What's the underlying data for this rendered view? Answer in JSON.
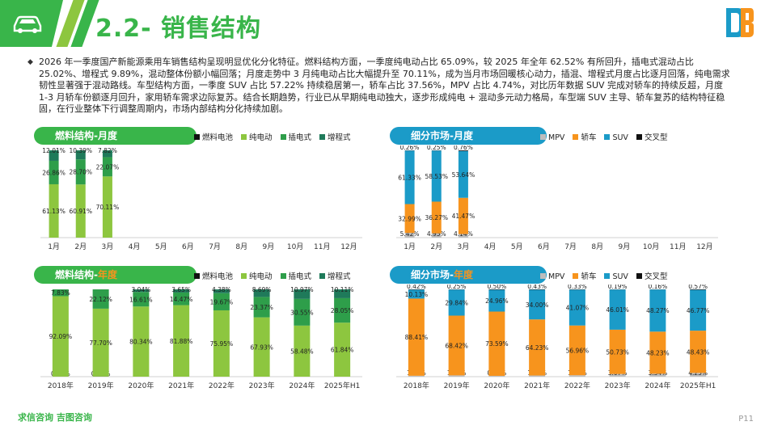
{
  "header": {
    "title": "2.2- 销售结构"
  },
  "summary": {
    "text": "2026 年一季度国产新能源乘用车销售结构呈现明显优化分化特征。燃料结构方面，一季度纯电动占比 65.09%，较 2025 年全年 62.52% 有所回升，插电式混动占比 25.02%、增程式 9.89%，混动整体份额小幅回落；月度走势中 3 月纯电动占比大幅提升至 70.11%，成为当月市场回暖核心动力，插混、增程式月度占比逐月回落，纯电需求韧性显著强于混动路线。车型结构方面，一季度 SUV 占比 57.22% 持续稳居第一，轿车占比 37.56%，MPV 占比 4.74%，对比历年数据 SUV 完成对轿车的持续反超，月度 1-3 月轿车份额逐月回升，家用轿车需求边际复苏。结合长期趋势，行业已从早期纯电动独大，逐步形成纯电 + 混动多元动力格局，车型端 SUV 主导、轿车复苏的结构特征稳固，在行业整体下行调整周期内，市场内部结构分化持续加剧。"
  },
  "colors": {
    "fuel": [
      "#111111",
      "#8dc63f",
      "#2e9e4a",
      "#1f7a5a"
    ],
    "segment": [
      "#bdbdbd",
      "#f7941d",
      "#1b9bc8",
      "#111111"
    ],
    "green_tag": "#39b54a",
    "blue_tag": "#1b9bc8"
  },
  "footer": {
    "brand": "求信咨询  吉图咨询",
    "page": "P11"
  },
  "chart_data": [
    {
      "type": "bar",
      "stacked": true,
      "title": "燃料结构-月度",
      "title_parts": [
        "燃料结构-月度"
      ],
      "categories": [
        "1月",
        "2月",
        "3月",
        "4月",
        "5月",
        "6月",
        "7月",
        "8月",
        "9月",
        "10月",
        "11月",
        "12月"
      ],
      "series": [
        {
          "name": "燃料电池",
          "values": [
            0,
            0,
            0,
            null,
            null,
            null,
            null,
            null,
            null,
            null,
            null,
            null
          ],
          "labels": [
            "",
            "",
            ""
          ]
        },
        {
          "name": "纯电动",
          "values": [
            61.13,
            60.91,
            70.11,
            null,
            null,
            null,
            null,
            null,
            null,
            null,
            null,
            null
          ],
          "labels": [
            "61.13%",
            "60.91%",
            "70.11%"
          ]
        },
        {
          "name": "插电式",
          "values": [
            26.86,
            28.7,
            22.07,
            null,
            null,
            null,
            null,
            null,
            null,
            null,
            null,
            null
          ],
          "labels": [
            "26.86%",
            "28.70%",
            "22.07%"
          ]
        },
        {
          "name": "增程式",
          "values": [
            12.01,
            10.39,
            7.82,
            null,
            null,
            null,
            null,
            null,
            null,
            null,
            null,
            null
          ],
          "labels": [
            "12.01%",
            "10.39%",
            "7.82%"
          ]
        }
      ],
      "ylim": [
        0,
        100
      ]
    },
    {
      "type": "bar",
      "stacked": true,
      "title": "细分市场-月度",
      "title_parts": [
        "细分市场-月度"
      ],
      "categories": [
        "1月",
        "2月",
        "3月",
        "4月",
        "5月",
        "6月",
        "7月",
        "8月",
        "9月",
        "10月",
        "11月",
        "12月"
      ],
      "series": [
        {
          "name": "MPV",
          "values": [
            5.42,
            4.95,
            4.14,
            null,
            null,
            null,
            null,
            null,
            null,
            null,
            null,
            null
          ],
          "labels": [
            "5.42%",
            "4.95%",
            "4.14%"
          ]
        },
        {
          "name": "轿车",
          "values": [
            32.99,
            36.27,
            41.47,
            null,
            null,
            null,
            null,
            null,
            null,
            null,
            null,
            null
          ],
          "labels": [
            "32.99%",
            "36.27%",
            "41.47%"
          ]
        },
        {
          "name": "SUV",
          "values": [
            61.33,
            58.53,
            53.64,
            null,
            null,
            null,
            null,
            null,
            null,
            null,
            null,
            null
          ],
          "labels": [
            "61.33%",
            "58.53%",
            "53.64%"
          ]
        },
        {
          "name": "交叉型",
          "values": [
            0.26,
            0.25,
            0.76,
            null,
            null,
            null,
            null,
            null,
            null,
            null,
            null,
            null
          ],
          "labels": [
            "0.26%",
            "0.25%",
            "0.76%"
          ]
        }
      ],
      "ylim": [
        0,
        100
      ]
    },
    {
      "type": "bar",
      "stacked": true,
      "title": "燃料结构-年度",
      "title_parts": [
        "燃料结构-",
        "年度"
      ],
      "categories": [
        "2018年",
        "2019年",
        "2020年",
        "2021年",
        "2022年",
        "2023年",
        "2024年",
        "2025年H1"
      ],
      "series": [
        {
          "name": "燃料电池",
          "values": [
            0.08,
            0.18,
            0.0,
            0.0,
            0.0,
            0.0,
            0.0,
            0.0
          ],
          "labels": [
            "0.08%",
            "0.18%",
            "",
            "",
            "",
            "",
            "",
            ""
          ]
        },
        {
          "name": "纯电动",
          "values": [
            92.09,
            77.7,
            80.34,
            81.88,
            75.95,
            67.93,
            58.48,
            61.84
          ],
          "labels": [
            "92.09%",
            "77.70%",
            "80.34%",
            "81.88%",
            "75.95%",
            "67.93%",
            "58.48%",
            "61.84%"
          ]
        },
        {
          "name": "插电式",
          "values": [
            7.83,
            22.12,
            16.61,
            14.47,
            19.67,
            23.37,
            30.55,
            28.05
          ],
          "labels": [
            "7.83%",
            "22.12%",
            "16.61%",
            "14.47%",
            "19.67%",
            "23.37%",
            "30.55%",
            "28.05%"
          ]
        },
        {
          "name": "增程式",
          "values": [
            0.0,
            0.0,
            3.04,
            3.65,
            4.38,
            8.69,
            10.97,
            10.11
          ],
          "labels": [
            "",
            "",
            "3.04%",
            "3.65%",
            "4.38%",
            "8.69%",
            "10.97%",
            "10.11%"
          ]
        }
      ],
      "ylim": [
        0,
        100
      ]
    },
    {
      "type": "bar",
      "stacked": true,
      "title": "细分市场-年度",
      "title_parts": [
        "细分市场-",
        "年度"
      ],
      "categories": [
        "2018年",
        "2019年",
        "2020年",
        "2021年",
        "2022年",
        "2023年",
        "2024年",
        "2025年H1"
      ],
      "series": [
        {
          "name": "MPV",
          "values": [
            1.04,
            1.49,
            0.95,
            1.34,
            1.65,
            3.07,
            3.34,
            4.25
          ],
          "labels": [
            "1.04%",
            "1.49%",
            "0.95%",
            "1.34%",
            "1.65%",
            "3.07%",
            "3.34%",
            "4.25%"
          ]
        },
        {
          "name": "轿车",
          "values": [
            88.41,
            68.42,
            73.59,
            64.23,
            56.96,
            50.73,
            48.23,
            48.43
          ],
          "labels": [
            "88.41%",
            "68.42%",
            "73.59%",
            "64.23%",
            "56.96%",
            "50.73%",
            "48.23%",
            "48.43%"
          ]
        },
        {
          "name": "SUV",
          "values": [
            10.13,
            29.84,
            24.96,
            34.0,
            41.07,
            46.01,
            48.27,
            46.77
          ],
          "labels": [
            "10.13%",
            "29.84%",
            "24.96%",
            "34.00%",
            "41.07%",
            "46.01%",
            "48.27%",
            "46.77%"
          ]
        },
        {
          "name": "交叉型",
          "values": [
            0.42,
            0.25,
            0.5,
            0.43,
            0.33,
            0.19,
            0.16,
            0.57
          ],
          "labels": [
            "0.42%",
            "0.25%",
            "0.50%",
            "0.43%",
            "0.33%",
            "0.19%",
            "0.16%",
            "0.57%"
          ]
        }
      ],
      "ylim": [
        0,
        100
      ]
    }
  ]
}
